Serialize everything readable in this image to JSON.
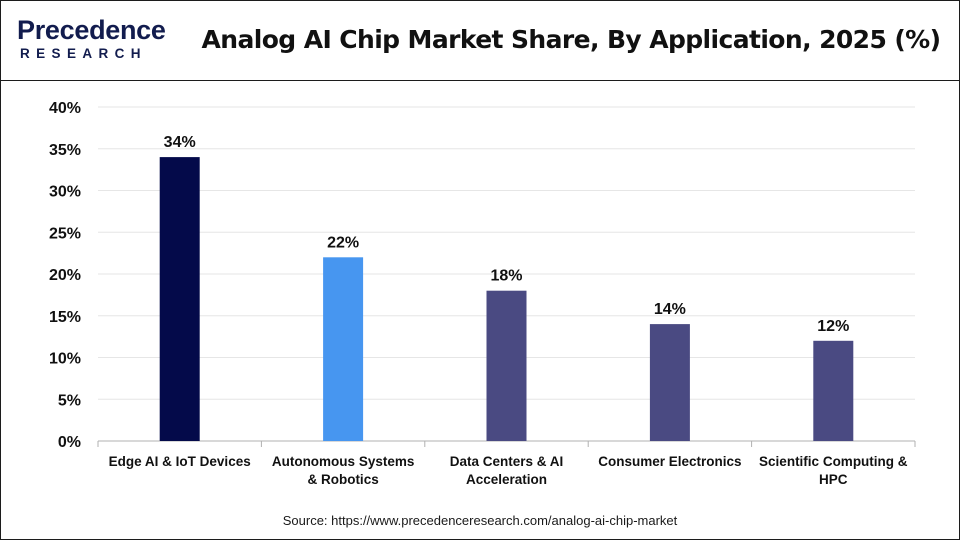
{
  "header": {
    "logo_top": "Precedence",
    "logo_bottom": "RESEARCH",
    "title": "Analog AI Chip Market Share, By Application, 2025 (%)"
  },
  "source_text": "Source: https://www.precedenceresearch.com/analog-ai-chip-market",
  "colors": {
    "dark_navy": "#040a4a",
    "bright_blue": "#4796f0",
    "slate_blue": "#4a4a82",
    "grid": "#e6e6e6",
    "axis": "#b0b0b0",
    "brand": "#121c4e"
  },
  "chart_data": {
    "type": "bar",
    "title": "Analog AI Chip Market Share, By Application, 2025 (%)",
    "xlabel": "",
    "ylabel": "",
    "categories": [
      [
        "Edge AI & IoT Devices"
      ],
      [
        "Autonomous Systems",
        "& Robotics"
      ],
      [
        "Data Centers & AI",
        "Acceleration"
      ],
      [
        "Consumer Electronics"
      ],
      [
        "Scientific Computing &",
        "HPC"
      ]
    ],
    "values": [
      34,
      22,
      18,
      14,
      12
    ],
    "data_labels": [
      "34%",
      "22%",
      "18%",
      "14%",
      "12%"
    ],
    "bar_colors": [
      "#040a4a",
      "#4796f0",
      "#4a4a82",
      "#4a4a82",
      "#4a4a82"
    ],
    "ylim": [
      0,
      40
    ],
    "yticks": [
      0,
      5,
      10,
      15,
      20,
      25,
      30,
      35,
      40
    ],
    "ytick_labels": [
      "0%",
      "5%",
      "10%",
      "15%",
      "20%",
      "25%",
      "30%",
      "35%",
      "40%"
    ],
    "grid": true,
    "legend": "none"
  }
}
